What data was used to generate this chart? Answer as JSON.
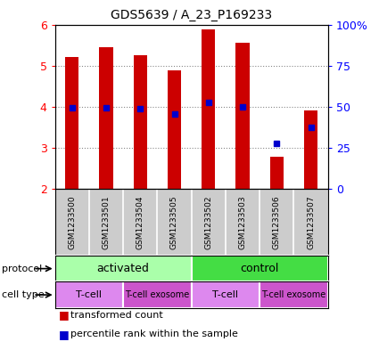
{
  "title": "GDS5639 / A_23_P169233",
  "samples": [
    "GSM1233500",
    "GSM1233501",
    "GSM1233504",
    "GSM1233505",
    "GSM1233502",
    "GSM1233503",
    "GSM1233506",
    "GSM1233507"
  ],
  "transformed_counts": [
    5.2,
    5.45,
    5.25,
    4.88,
    5.88,
    5.55,
    2.78,
    3.9
  ],
  "percentile_ranks": [
    3.98,
    3.98,
    3.95,
    3.82,
    4.1,
    4.0,
    3.12,
    3.5
  ],
  "ylim": [
    2,
    6
  ],
  "yticks": [
    2,
    3,
    4,
    5,
    6
  ],
  "right_yticks": [
    0,
    25,
    50,
    75,
    100
  ],
  "bar_color": "#cc0000",
  "dot_color": "#0000cc",
  "bar_width": 0.4,
  "protocol_groups": [
    {
      "label": "activated",
      "start": 0,
      "end": 4,
      "color": "#aaffaa"
    },
    {
      "label": "control",
      "start": 4,
      "end": 8,
      "color": "#44dd44"
    }
  ],
  "cell_type_groups": [
    {
      "label": "T-cell",
      "start": 0,
      "end": 2,
      "color": "#dd88ee"
    },
    {
      "label": "T-cell exosome",
      "start": 2,
      "end": 4,
      "color": "#cc55cc"
    },
    {
      "label": "T-cell",
      "start": 4,
      "end": 6,
      "color": "#dd88ee"
    },
    {
      "label": "T-cell exosome",
      "start": 6,
      "end": 8,
      "color": "#cc55cc"
    }
  ],
  "sample_bg_color": "#cccccc",
  "grid_color": "#888888",
  "legend_red_label": "transformed count",
  "legend_blue_label": "percentile rank within the sample"
}
